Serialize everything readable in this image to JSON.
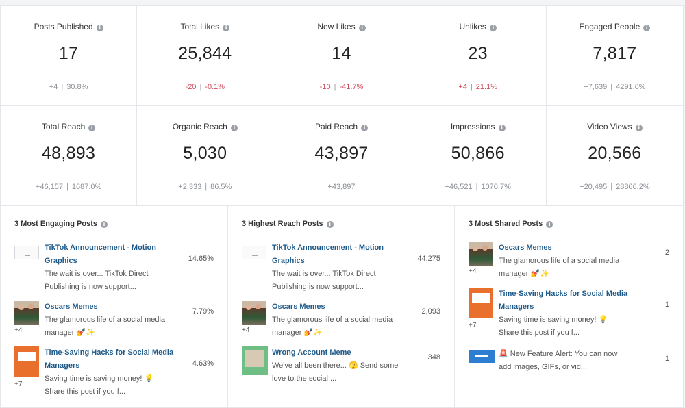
{
  "metrics": [
    {
      "label": "Posts Published",
      "value": "17",
      "delta": "+4",
      "pct": "30.8%",
      "tone": "pos"
    },
    {
      "label": "Total Likes",
      "value": "25,844",
      "delta": "-20",
      "pct": "-0.1%",
      "tone": "neg"
    },
    {
      "label": "New Likes",
      "value": "14",
      "delta": "-10",
      "pct": "-41.7%",
      "tone": "neg"
    },
    {
      "label": "Unlikes",
      "value": "23",
      "delta": "+4",
      "pct": "21.1%",
      "tone": "neg"
    },
    {
      "label": "Engaged People",
      "value": "7,817",
      "delta": "+7,639",
      "pct": "4291.6%",
      "tone": "pos"
    },
    {
      "label": "Total Reach",
      "value": "48,893",
      "delta": "+46,157",
      "pct": "1687.0%",
      "tone": "pos"
    },
    {
      "label": "Organic Reach",
      "value": "5,030",
      "delta": "+2,333",
      "pct": "86.5%",
      "tone": "pos"
    },
    {
      "label": "Paid Reach",
      "value": "43,897",
      "delta": "+43,897",
      "pct": "",
      "tone": "pos"
    },
    {
      "label": "Impressions",
      "value": "50,866",
      "delta": "+46,521",
      "pct": "1070.7%",
      "tone": "pos"
    },
    {
      "label": "Video Views",
      "value": "20,566",
      "delta": "+20,495",
      "pct": "28866.2%",
      "tone": "pos"
    }
  ],
  "lists": [
    {
      "title": "3 Most Engaging Posts",
      "posts": [
        {
          "thumb": "blank",
          "more": "",
          "title": "TikTok Announcement - Motion Graphics",
          "text": "The wait is over... TikTok Direct Publishing is now support...",
          "stat": "14.65%"
        },
        {
          "thumb": "photo",
          "more": "+4",
          "title": "Oscars Memes",
          "text": "The glamorous life of a social media manager 💅✨",
          "stat": "7.79%"
        },
        {
          "thumb": "orange",
          "more": "+7",
          "title": "Time-Saving Hacks for Social Media Managers",
          "text": "Saving time is saving money! 💡 Share this post if you f...",
          "stat": "4.63%"
        }
      ]
    },
    {
      "title": "3 Highest Reach Posts",
      "posts": [
        {
          "thumb": "blank",
          "more": "",
          "title": "TikTok Announcement - Motion Graphics",
          "text": "The wait is over... TikTok Direct Publishing is now support...",
          "stat": "44,275"
        },
        {
          "thumb": "photo",
          "more": "+4",
          "title": "Oscars Memes",
          "text": "The glamorous life of a social media manager 💅✨",
          "stat": "2,093"
        },
        {
          "thumb": "green",
          "more": "",
          "title": "Wrong Account Meme",
          "text": "We've all been there... 🫣 Send some love to the social ...",
          "stat": "348"
        }
      ]
    },
    {
      "title": "3 Most Shared Posts",
      "posts": [
        {
          "thumb": "photo",
          "more": "+4",
          "title": "Oscars Memes",
          "text": "The glamorous life of a social media manager 💅✨",
          "stat": "2"
        },
        {
          "thumb": "orange",
          "more": "+7",
          "title": "Time-Saving Hacks for Social Media Managers",
          "text": "Saving time is saving money! 💡 Share this post if you f...",
          "stat": "1"
        },
        {
          "thumb": "blue",
          "more": "",
          "title": "",
          "text": "🚨 New Feature Alert: You can now add images, GIFs, or vid...",
          "stat": "1"
        }
      ]
    }
  ],
  "info_icon": "info-circle-icon"
}
